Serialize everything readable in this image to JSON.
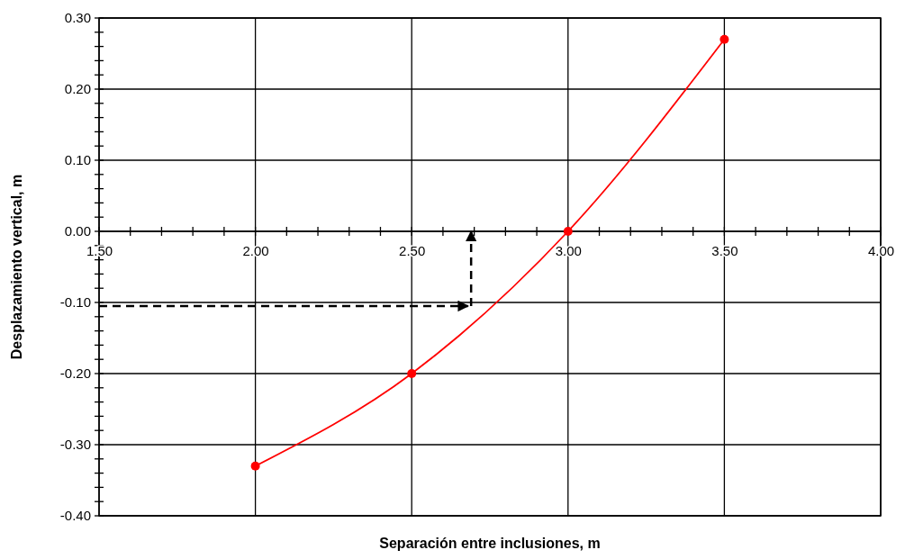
{
  "chart_data": {
    "type": "line",
    "xlabel": "Separación entre inclusiones, m",
    "ylabel": "Desplazamiento vertical, m",
    "xlim": [
      1.5,
      4.0
    ],
    "ref_lines": [
      {
        "axis": "y",
        "value": 0,
        "color": "#000000"
      }
    ],
    "ylim": [
      -0.4,
      0.3
    ],
    "grid": true,
    "marker": "circle",
    "xticks": [
      {
        "value": 1.5,
        "label": "1.50"
      },
      {
        "value": 1.6,
        "label": null
      },
      {
        "value": 1.7,
        "label": null
      },
      {
        "value": 1.8,
        "label": null
      },
      {
        "value": 1.9,
        "label": null
      },
      {
        "value": 2.0,
        "label": "2.00"
      },
      {
        "value": 2.1,
        "label": null
      },
      {
        "value": 2.2,
        "label": null
      },
      {
        "value": 2.3,
        "label": null
      },
      {
        "value": 2.4,
        "label": null
      },
      {
        "value": 2.5,
        "label": "2.50"
      },
      {
        "value": 2.6,
        "label": null
      },
      {
        "value": 2.7,
        "label": null
      },
      {
        "value": 2.8,
        "label": null
      },
      {
        "value": 2.9,
        "label": null
      },
      {
        "value": 3.0,
        "label": "3.00"
      },
      {
        "value": 3.1,
        "label": null
      },
      {
        "value": 3.2,
        "label": null
      },
      {
        "value": 3.3,
        "label": null
      },
      {
        "value": 3.4,
        "label": null
      },
      {
        "value": 3.5,
        "label": "3.50"
      },
      {
        "value": 3.6,
        "label": null
      },
      {
        "value": 3.7,
        "label": null
      },
      {
        "value": 3.8,
        "label": null
      },
      {
        "value": 3.9,
        "label": null
      },
      {
        "value": 4.0,
        "label": "4.00"
      }
    ],
    "yticks": [
      {
        "value": -0.4,
        "label": "-0.40"
      },
      {
        "value": -0.38,
        "label": null
      },
      {
        "value": -0.36,
        "label": null
      },
      {
        "value": -0.34,
        "label": null
      },
      {
        "value": -0.32,
        "label": null
      },
      {
        "value": -0.3,
        "label": "-0.30"
      },
      {
        "value": -0.28,
        "label": null
      },
      {
        "value": -0.26,
        "label": null
      },
      {
        "value": -0.24,
        "label": null
      },
      {
        "value": -0.22,
        "label": null
      },
      {
        "value": -0.2,
        "label": "-0.20"
      },
      {
        "value": -0.18,
        "label": null
      },
      {
        "value": -0.16,
        "label": null
      },
      {
        "value": -0.14,
        "label": null
      },
      {
        "value": -0.12,
        "label": null
      },
      {
        "value": -0.1,
        "label": "-0.10"
      },
      {
        "value": -0.08,
        "label": null
      },
      {
        "value": -0.06,
        "label": null
      },
      {
        "value": -0.04,
        "label": null
      },
      {
        "value": -0.02,
        "label": null
      },
      {
        "value": 0,
        "label": "0.00"
      },
      {
        "value": 0.02,
        "label": null
      },
      {
        "value": 0.04,
        "label": null
      },
      {
        "value": 0.06,
        "label": null
      },
      {
        "value": 0.08,
        "label": null
      },
      {
        "value": 0.1,
        "label": "0.10"
      },
      {
        "value": 0.12,
        "label": null
      },
      {
        "value": 0.14,
        "label": null
      },
      {
        "value": 0.16,
        "label": null
      },
      {
        "value": 0.18,
        "label": null
      },
      {
        "value": 0.2,
        "label": "0.20"
      },
      {
        "value": 0.22,
        "label": null
      },
      {
        "value": 0.24,
        "label": null
      },
      {
        "value": 0.26,
        "label": null
      },
      {
        "value": 0.28,
        "label": null
      },
      {
        "value": 0.3,
        "label": "0.30"
      }
    ],
    "series": [
      {
        "color": "#ff0000",
        "x": [
          2.0,
          2.5,
          3.0,
          3.5
        ],
        "values": [
          -0.33,
          -0.2,
          0.0,
          0.27
        ]
      },
      {
        "color": "#000000",
        "line_style": "dashed",
        "marker": "none",
        "x": [
          1.5,
          2.68
        ],
        "values": [
          -0.105,
          -0.105
        ]
      },
      {
        "color": "#000000",
        "line_style": "dashed",
        "marker": "none",
        "x": [
          2.69,
          2.69
        ],
        "values": [
          -0.105,
          0.0
        ]
      }
    ]
  }
}
